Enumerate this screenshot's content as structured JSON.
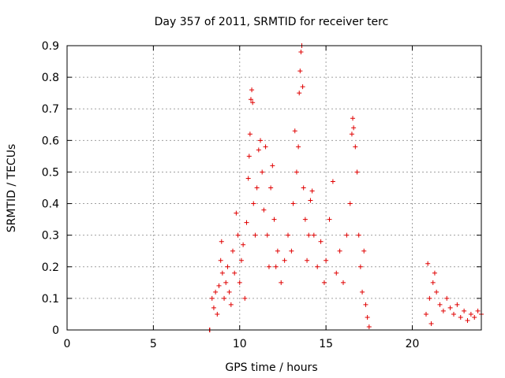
{
  "chart_data": {
    "type": "scatter",
    "title": "Day 357 of 2011, SRMTID for receiver terc",
    "xlabel": "GPS time / hours",
    "ylabel": "SRMTID / TECUs",
    "xlim": [
      0,
      24
    ],
    "ylim": [
      0,
      0.9
    ],
    "xticks": [
      "0",
      "5",
      "10",
      "15",
      "20"
    ],
    "yticks": [
      "0",
      "0.1",
      "0.2",
      "0.3",
      "0.4",
      "0.5",
      "0.6",
      "0.7",
      "0.8",
      "0.9"
    ],
    "grid": true,
    "marker": "plus",
    "color": "#e00000",
    "series": [
      {
        "points": [
          [
            8.25,
            0.0
          ],
          [
            8.27,
            0.0
          ],
          [
            8.4,
            0.1
          ],
          [
            8.5,
            0.07
          ],
          [
            8.6,
            0.12
          ],
          [
            8.7,
            0.05
          ],
          [
            8.8,
            0.14
          ],
          [
            8.9,
            0.22
          ],
          [
            8.95,
            0.28
          ],
          [
            9.0,
            0.18
          ],
          [
            9.1,
            0.1
          ],
          [
            9.2,
            0.15
          ],
          [
            9.3,
            0.2
          ],
          [
            9.4,
            0.12
          ],
          [
            9.5,
            0.08
          ],
          [
            9.6,
            0.25
          ],
          [
            9.7,
            0.18
          ],
          [
            9.8,
            0.37
          ],
          [
            9.9,
            0.3
          ],
          [
            10.0,
            0.15
          ],
          [
            10.1,
            0.22
          ],
          [
            10.2,
            0.27
          ],
          [
            10.3,
            0.1
          ],
          [
            10.4,
            0.34
          ],
          [
            10.5,
            0.48
          ],
          [
            10.55,
            0.55
          ],
          [
            10.6,
            0.62
          ],
          [
            10.65,
            0.73
          ],
          [
            10.7,
            0.76
          ],
          [
            10.75,
            0.72
          ],
          [
            10.8,
            0.4
          ],
          [
            10.9,
            0.3
          ],
          [
            11.0,
            0.45
          ],
          [
            11.1,
            0.57
          ],
          [
            11.2,
            0.6
          ],
          [
            11.3,
            0.5
          ],
          [
            11.4,
            0.38
          ],
          [
            11.5,
            0.58
          ],
          [
            11.6,
            0.3
          ],
          [
            11.7,
            0.2
          ],
          [
            11.8,
            0.45
          ],
          [
            11.9,
            0.52
          ],
          [
            12.0,
            0.35
          ],
          [
            12.1,
            0.2
          ],
          [
            12.2,
            0.25
          ],
          [
            12.4,
            0.15
          ],
          [
            12.6,
            0.22
          ],
          [
            12.8,
            0.3
          ],
          [
            13.0,
            0.25
          ],
          [
            13.1,
            0.4
          ],
          [
            13.2,
            0.63
          ],
          [
            13.3,
            0.5
          ],
          [
            13.4,
            0.58
          ],
          [
            13.45,
            0.75
          ],
          [
            13.5,
            0.82
          ],
          [
            13.55,
            0.88
          ],
          [
            13.6,
            0.9
          ],
          [
            13.65,
            0.77
          ],
          [
            13.7,
            0.45
          ],
          [
            13.8,
            0.35
          ],
          [
            13.9,
            0.22
          ],
          [
            14.0,
            0.3
          ],
          [
            14.1,
            0.41
          ],
          [
            14.2,
            0.44
          ],
          [
            14.3,
            0.3
          ],
          [
            14.5,
            0.2
          ],
          [
            14.7,
            0.28
          ],
          [
            14.9,
            0.15
          ],
          [
            15.0,
            0.22
          ],
          [
            15.2,
            0.35
          ],
          [
            15.4,
            0.47
          ],
          [
            15.6,
            0.18
          ],
          [
            15.8,
            0.25
          ],
          [
            16.0,
            0.15
          ],
          [
            16.2,
            0.3
          ],
          [
            16.4,
            0.4
          ],
          [
            16.5,
            0.62
          ],
          [
            16.55,
            0.67
          ],
          [
            16.6,
            0.64
          ],
          [
            16.7,
            0.58
          ],
          [
            16.8,
            0.5
          ],
          [
            16.9,
            0.3
          ],
          [
            17.0,
            0.2
          ],
          [
            17.1,
            0.12
          ],
          [
            17.2,
            0.25
          ],
          [
            17.3,
            0.08
          ],
          [
            17.4,
            0.04
          ],
          [
            17.5,
            0.01
          ],
          [
            20.8,
            0.05
          ],
          [
            20.9,
            0.21
          ],
          [
            21.0,
            0.1
          ],
          [
            21.1,
            0.02
          ],
          [
            21.2,
            0.15
          ],
          [
            21.3,
            0.18
          ],
          [
            21.4,
            0.12
          ],
          [
            21.6,
            0.08
          ],
          [
            21.8,
            0.06
          ],
          [
            22.0,
            0.1
          ],
          [
            22.2,
            0.07
          ],
          [
            22.4,
            0.05
          ],
          [
            22.6,
            0.08
          ],
          [
            22.8,
            0.04
          ],
          [
            23.0,
            0.06
          ],
          [
            23.2,
            0.03
          ],
          [
            23.4,
            0.05
          ],
          [
            23.6,
            0.04
          ],
          [
            23.8,
            0.06
          ],
          [
            24.0,
            0.05
          ]
        ]
      }
    ]
  }
}
